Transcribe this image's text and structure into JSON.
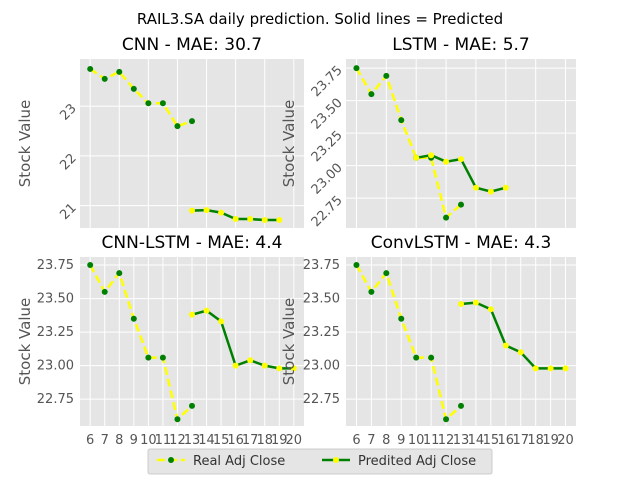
{
  "figure": {
    "suptitle": "RAIL3.SA daily prediction. Solid lines = Predicted",
    "legend": {
      "placement": "bottom-center",
      "entries": [
        "Real Adj Close",
        "Predited Adj Close"
      ]
    },
    "colors": {
      "real_line": "#ffff00",
      "real_marker": "#008000",
      "pred_line": "#008000",
      "pred_marker": "#ffff00",
      "axes_bg": "#e5e5e5",
      "grid": "#ffffff",
      "tick_text": "#555555"
    }
  },
  "chart_data": [
    {
      "type": "line",
      "title": "CNN - MAE: 30.7",
      "xlabel": "",
      "ylabel": "Stock Value",
      "xlim": [
        5.3,
        20.7
      ],
      "ylim": [
        20.55,
        23.95
      ],
      "xticks": [
        6,
        8,
        10,
        12,
        14,
        16,
        18,
        20
      ],
      "xtick_labels_visible": false,
      "yticks": [
        21,
        22,
        23
      ],
      "ytick_labels": [
        "21",
        "22",
        "23"
      ],
      "ytick_rotation": 45,
      "grid": true,
      "series": [
        {
          "name": "Real Adj Close",
          "x": [
            6,
            7,
            8,
            9,
            10,
            11,
            12,
            13
          ],
          "y": [
            23.75,
            23.55,
            23.69,
            23.35,
            23.06,
            23.06,
            22.6,
            22.7
          ]
        },
        {
          "name": "Predited Adj Close",
          "x": [
            13,
            14,
            15,
            16,
            17,
            18,
            19
          ],
          "y": [
            20.9,
            20.91,
            20.86,
            20.73,
            20.73,
            20.71,
            20.71
          ]
        }
      ]
    },
    {
      "type": "line",
      "title": "LSTM - MAE: 5.7",
      "xlabel": "",
      "ylabel": "Stock Value",
      "xlim": [
        5.3,
        20.7
      ],
      "ylim": [
        22.52,
        23.82
      ],
      "xticks": [
        6,
        8,
        10,
        12,
        14,
        16,
        18,
        20
      ],
      "xtick_labels_visible": false,
      "yticks": [
        22.75,
        23.0,
        23.25,
        23.5,
        23.75
      ],
      "ytick_labels": [
        "22.75",
        "23.00",
        "23.25",
        "23.50",
        "23.75"
      ],
      "ytick_rotation": 45,
      "grid": true,
      "series": [
        {
          "name": "Real Adj Close",
          "x": [
            6,
            7,
            8,
            9,
            10,
            11,
            12,
            13
          ],
          "y": [
            23.75,
            23.55,
            23.69,
            23.35,
            23.06,
            23.06,
            22.6,
            22.7
          ]
        },
        {
          "name": "Predited Adj Close",
          "x": [
            10,
            11,
            12,
            13,
            14,
            15,
            16
          ],
          "y": [
            23.06,
            23.08,
            23.03,
            23.05,
            22.83,
            22.8,
            22.83
          ]
        }
      ]
    },
    {
      "type": "line",
      "title": "CNN-LSTM - MAE: 4.4",
      "xlabel": "",
      "ylabel": "Stock Value",
      "xlim": [
        5.3,
        20.7
      ],
      "ylim": [
        22.55,
        23.81
      ],
      "xticks": [
        6,
        7,
        8,
        9,
        10,
        11,
        12,
        13,
        14,
        15,
        16,
        17,
        18,
        19,
        20
      ],
      "xtick_labels": [
        "6",
        "7",
        "8",
        "9",
        "10",
        "11",
        "12",
        "13",
        "14",
        "15",
        "16",
        "17",
        "18",
        "19",
        "20"
      ],
      "xtick_labels_visible": true,
      "yticks": [
        22.75,
        23.0,
        23.25,
        23.5,
        23.75
      ],
      "ytick_labels": [
        "22.75",
        "23.00",
        "23.25",
        "23.50",
        "23.75"
      ],
      "ytick_rotation": 0,
      "grid": true,
      "series": [
        {
          "name": "Real Adj Close",
          "x": [
            6,
            7,
            8,
            9,
            10,
            11,
            12,
            13,
            14,
            15
          ],
          "y": [
            23.75,
            23.55,
            23.69,
            23.35,
            23.06,
            23.06,
            22.6,
            22.7,
            null,
            null
          ]
        },
        {
          "name": "Predited Adj Close",
          "x": [
            13,
            14,
            15,
            16,
            17,
            18,
            19,
            20
          ],
          "y": [
            23.38,
            23.41,
            23.33,
            23.0,
            23.04,
            23.0,
            22.98,
            22.98
          ]
        }
      ]
    },
    {
      "type": "line",
      "title": "ConvLSTM - MAE: 4.3",
      "xlabel": "",
      "ylabel": "Stock Value",
      "xlim": [
        5.3,
        20.7
      ],
      "ylim": [
        22.55,
        23.81
      ],
      "xticks": [
        6,
        7,
        8,
        9,
        10,
        11,
        12,
        13,
        14,
        15,
        16,
        17,
        18,
        19,
        20
      ],
      "xtick_labels": [
        "6",
        "7",
        "8",
        "9",
        "10",
        "11",
        "12",
        "13",
        "14",
        "15",
        "16",
        "17",
        "18",
        "19",
        "20"
      ],
      "xtick_labels_visible": true,
      "yticks": [
        22.75,
        23.0,
        23.25,
        23.5,
        23.75
      ],
      "ytick_labels": [
        "22.75",
        "23.00",
        "23.25",
        "23.50",
        "23.75"
      ],
      "ytick_rotation": 0,
      "grid": true,
      "series": [
        {
          "name": "Real Adj Close",
          "x": [
            6,
            7,
            8,
            9,
            10,
            11,
            12,
            13
          ],
          "y": [
            23.75,
            23.55,
            23.69,
            23.35,
            23.06,
            23.06,
            22.6,
            22.7
          ]
        },
        {
          "name": "Predited Adj Close",
          "x": [
            13,
            14,
            15,
            16,
            17,
            18,
            19,
            20
          ],
          "y": [
            23.46,
            23.47,
            23.42,
            23.15,
            23.1,
            22.98,
            22.98,
            22.98
          ]
        }
      ]
    }
  ]
}
